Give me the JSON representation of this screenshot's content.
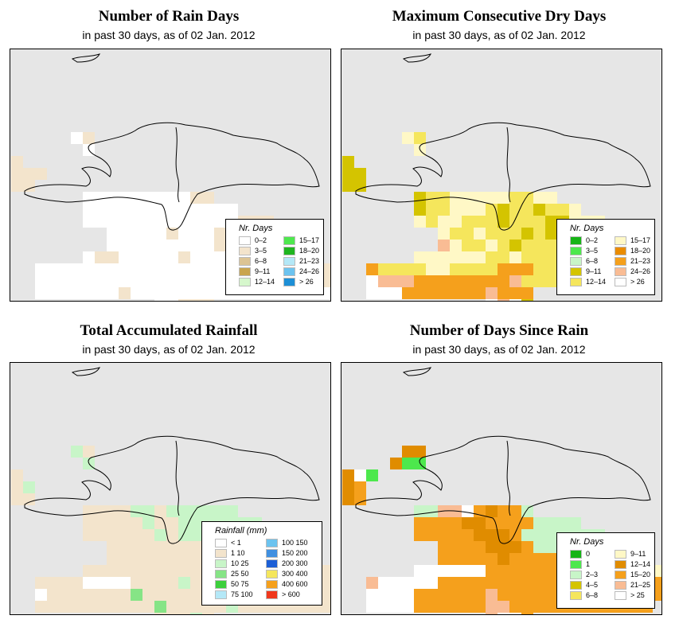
{
  "panels": [
    {
      "title": "Number of Rain Days",
      "subtitle": "in past 30 days, as of  02 Jan. 2012",
      "legend": {
        "title": "Nr. Days",
        "items": [
          {
            "label": "0–2",
            "color": "#ffffff"
          },
          {
            "label": "3–5",
            "color": "#f3e4cc"
          },
          {
            "label": "6–8",
            "color": "#dcc494"
          },
          {
            "label": "9–11",
            "color": "#c9a54e"
          },
          {
            "label": "12–14",
            "color": "#d6f7cc"
          },
          {
            "label": "15–17",
            "color": "#4ee84e"
          },
          {
            "label": "18–20",
            "color": "#1fb51f"
          },
          {
            "label": "21–23",
            "color": "#b4e8f7"
          },
          {
            "label": "24–26",
            "color": "#6cc3ef"
          },
          {
            "label": "> 26",
            "color": "#1d8fd6"
          }
        ]
      },
      "palette": {
        "w": "#ffffff",
        "b": "#f3e4cc"
      }
    },
    {
      "title": "Maximum Consecutive Dry Days",
      "subtitle": "in past 30 days, as of  02 Jan. 2012",
      "legend": {
        "title": "Nr. Days",
        "items": [
          {
            "label": "0–2",
            "color": "#16b416"
          },
          {
            "label": "3–5",
            "color": "#4de84d"
          },
          {
            "label": "6–8",
            "color": "#c8f5c8"
          },
          {
            "label": "9–11",
            "color": "#d4c400"
          },
          {
            "label": "12–14",
            "color": "#f5e65c"
          },
          {
            "label": "15–17",
            "color": "#fff8c6"
          },
          {
            "label": "18–20",
            "color": "#ea8c00"
          },
          {
            "label": "21–23",
            "color": "#f5a01c"
          },
          {
            "label": "24–26",
            "color": "#f9bc94"
          },
          {
            "label": "> 26",
            "color": "#ffffff"
          }
        ]
      },
      "palette": {
        "w": "#ffffff",
        "l": "#fff8c6",
        "y": "#f5e65c",
        "o": "#d4c400",
        "a": "#f5a01c",
        "p": "#f9bc94",
        "g": "#c8f5c8",
        "r": "#ea8c00"
      }
    },
    {
      "title": "Total Accumulated Rainfall",
      "subtitle": "in past 30 days, as of  02 Jan. 2012",
      "legend": {
        "title": "Rainfall (mm)",
        "items": [
          {
            "label": "< 1",
            "color": "#ffffff"
          },
          {
            "label": "1    10",
            "color": "#f3e4cc"
          },
          {
            "label": "10    25",
            "color": "#c8f5c8"
          },
          {
            "label": "25    50",
            "color": "#86e486"
          },
          {
            "label": "50    75",
            "color": "#3ccf3c"
          },
          {
            "label": "75  100",
            "color": "#b4e8f7"
          },
          {
            "label": "100  150",
            "color": "#6cc3ef"
          },
          {
            "label": "150  200",
            "color": "#3f8fe0"
          },
          {
            "label": "200  300",
            "color": "#1c5fd6"
          },
          {
            "label": "300  400",
            "color": "#f5e65c"
          },
          {
            "label": "400  600",
            "color": "#f5a01c"
          },
          {
            "label": "> 600",
            "color": "#f0381c"
          }
        ]
      },
      "palette": {
        "w": "#ffffff",
        "b": "#f3e4cc",
        "g": "#c8f5c8",
        "m": "#86e486"
      }
    },
    {
      "title": "Number of Days Since Rain",
      "subtitle": "in past 30 days, as of  02 Jan. 2012",
      "legend": {
        "title": "Nr. Days",
        "items": [
          {
            "label": "0",
            "color": "#16b416"
          },
          {
            "label": "1",
            "color": "#4de84d"
          },
          {
            "label": "2–3",
            "color": "#c8f5c8"
          },
          {
            "label": "4–5",
            "color": "#d4c400"
          },
          {
            "label": "6–8",
            "color": "#f5e65c"
          },
          {
            "label": "9–11",
            "color": "#fff8c6"
          },
          {
            "label": "12–14",
            "color": "#e08c00"
          },
          {
            "label": "15–20",
            "color": "#f5a01c"
          },
          {
            "label": "21–25",
            "color": "#f9bc94"
          },
          {
            "label": "> 25",
            "color": "#ffffff"
          }
        ]
      },
      "palette": {
        "w": "#ffffff",
        "o": "#f5a01c",
        "d": "#e08c00",
        "g": "#c8f5c8",
        "G": "#4de84d",
        "p": "#f9bc94",
        "l": "#fff8c6"
      }
    }
  ]
}
